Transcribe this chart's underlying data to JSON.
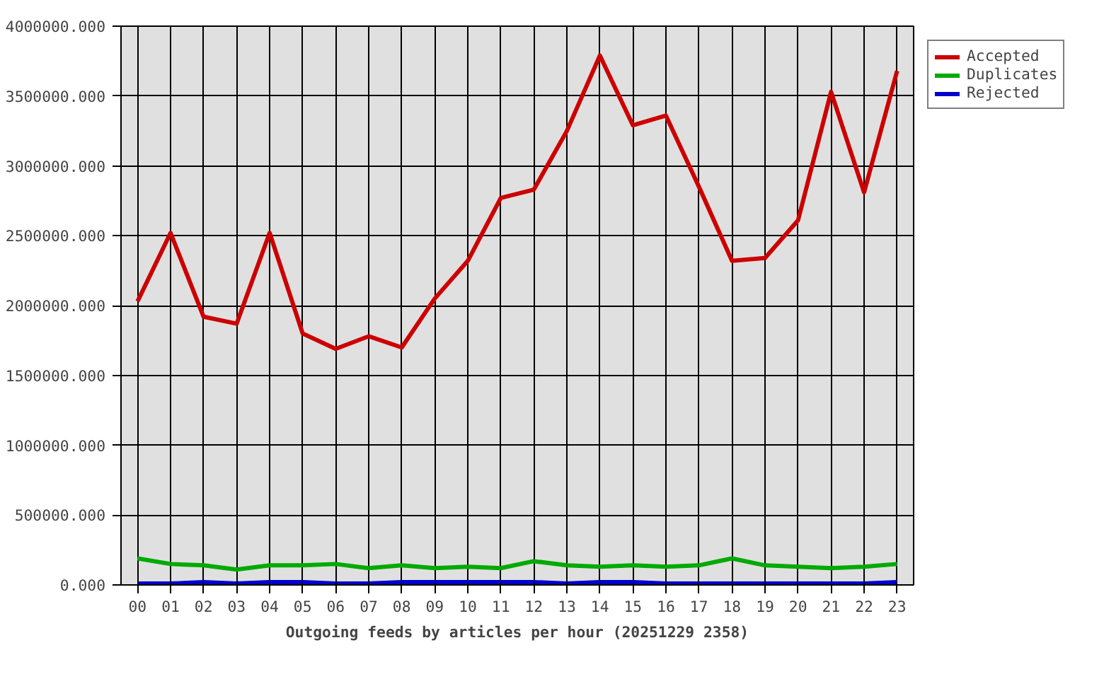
{
  "chart_data": {
    "type": "line",
    "xlabel": "Outgoing feeds by articles per hour (20251229 2358)",
    "categories": [
      "00",
      "01",
      "02",
      "03",
      "04",
      "05",
      "06",
      "07",
      "08",
      "09",
      "10",
      "11",
      "12",
      "13",
      "14",
      "15",
      "16",
      "17",
      "18",
      "19",
      "20",
      "21",
      "22",
      "23"
    ],
    "series": [
      {
        "name": "Accepted",
        "color": "#cc0000",
        "values": [
          2030000,
          2520000,
          1920000,
          1870000,
          2520000,
          1800000,
          1690000,
          1780000,
          1700000,
          2050000,
          2320000,
          2770000,
          2830000,
          3250000,
          3790000,
          3290000,
          3360000,
          2850000,
          2320000,
          2340000,
          2610000,
          3530000,
          2810000,
          3680000
        ]
      },
      {
        "name": "Duplicates",
        "color": "#00aa00",
        "values": [
          190000,
          150000,
          140000,
          110000,
          140000,
          140000,
          150000,
          120000,
          140000,
          120000,
          130000,
          120000,
          170000,
          140000,
          130000,
          140000,
          130000,
          140000,
          190000,
          140000,
          130000,
          120000,
          130000,
          150000
        ]
      },
      {
        "name": "Rejected",
        "color": "#0000cc",
        "values": [
          10000,
          10000,
          20000,
          10000,
          20000,
          20000,
          10000,
          10000,
          20000,
          20000,
          20000,
          20000,
          20000,
          10000,
          20000,
          20000,
          10000,
          10000,
          10000,
          10000,
          10000,
          10000,
          10000,
          20000
        ]
      }
    ],
    "ylim": [
      0,
      4000000
    ],
    "yticks": [
      {
        "value": 0,
        "label": "0.000"
      },
      {
        "value": 500000,
        "label": "500000.000"
      },
      {
        "value": 1000000,
        "label": "1000000.000"
      },
      {
        "value": 1500000,
        "label": "1500000.000"
      },
      {
        "value": 2000000,
        "label": "2000000.000"
      },
      {
        "value": 2500000,
        "label": "2500000.000"
      },
      {
        "value": 3000000,
        "label": "3000000.000"
      },
      {
        "value": 3500000,
        "label": "3500000.000"
      },
      {
        "value": 4000000,
        "label": "4000000.000"
      }
    ],
    "grid": true,
    "legend": "top right",
    "line_style": "solid"
  }
}
